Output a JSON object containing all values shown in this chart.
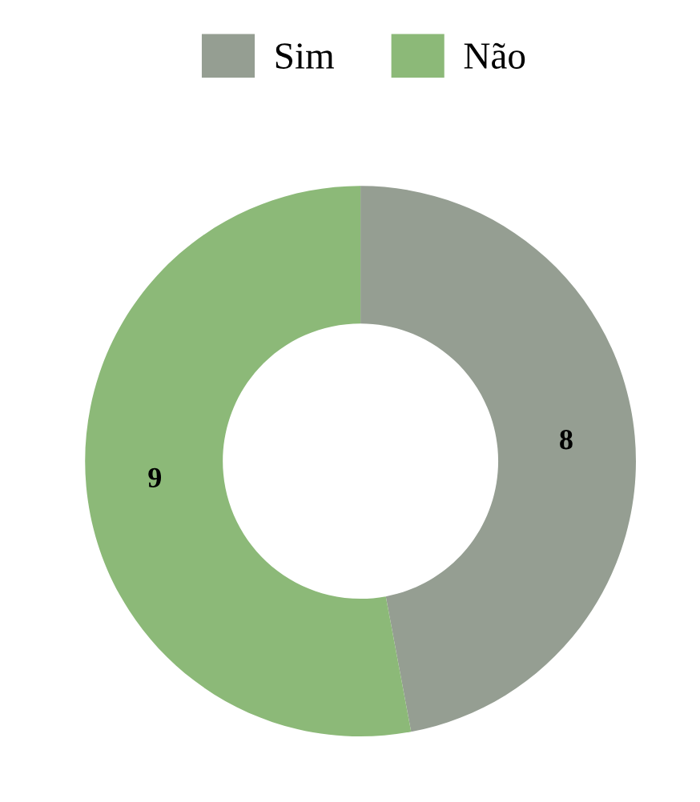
{
  "chart_data": {
    "type": "donut",
    "categories": [
      "Sim",
      "Não"
    ],
    "values": [
      8,
      9
    ],
    "colors": [
      "#959e92",
      "#8cb978"
    ],
    "data_labels": true,
    "legend": "top"
  }
}
